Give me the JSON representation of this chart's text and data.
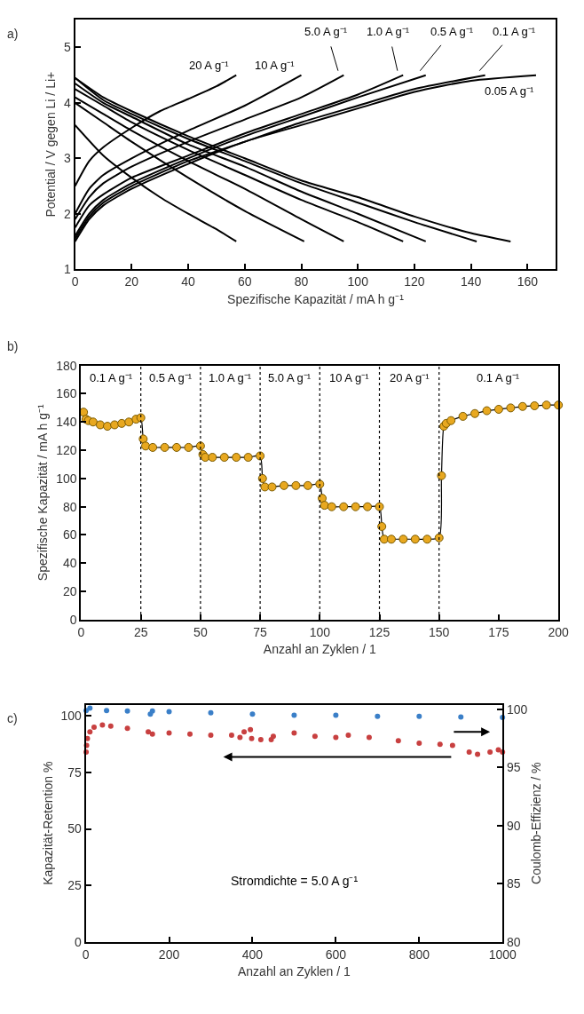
{
  "chart_data": [
    {
      "type": "line",
      "annotations": [
        "a)"
      ],
      "xlabel": "Spezifische Kapazität / mA h g⁻¹",
      "ylabel": "Potential / V gegen Li / Li+",
      "xlim": [
        0,
        170
      ],
      "ylim": [
        1,
        5.5
      ],
      "xticks": [
        0,
        20,
        40,
        60,
        80,
        100,
        120,
        140,
        160
      ],
      "yticks": [
        1,
        2,
        3,
        4,
        5
      ],
      "legend": false,
      "line_style": "solid",
      "series": [
        {
          "name": "20 A g⁻¹",
          "color": "#000000",
          "x": [
            0,
            5,
            10,
            20,
            30,
            40,
            50,
            57
          ],
          "values": [
            2.5,
            2.95,
            3.2,
            3.55,
            3.85,
            4.07,
            4.3,
            4.5
          ]
        },
        {
          "color": "#000000",
          "x": [
            0,
            10,
            20,
            30,
            40,
            50,
            57
          ],
          "values": [
            3.6,
            3.05,
            2.65,
            2.3,
            2.0,
            1.72,
            1.5
          ]
        },
        {
          "name": "10 A g⁻¹",
          "color": "#000000",
          "x": [
            0,
            5,
            10,
            20,
            40,
            60,
            80
          ],
          "values": [
            2.0,
            2.45,
            2.7,
            3.0,
            3.5,
            3.95,
            4.5
          ]
        },
        {
          "color": "#000000",
          "x": [
            0,
            10,
            20,
            40,
            60,
            81
          ],
          "values": [
            4.0,
            3.65,
            3.3,
            2.65,
            2.05,
            1.5
          ]
        },
        {
          "name": "5.0 A g⁻¹",
          "color": "#000000",
          "x": [
            0,
            5,
            10,
            20,
            40,
            60,
            80,
            95
          ],
          "values": [
            1.9,
            2.3,
            2.55,
            2.85,
            3.3,
            3.7,
            4.1,
            4.5
          ]
        },
        {
          "color": "#000000",
          "x": [
            0,
            10,
            20,
            40,
            60,
            80,
            95
          ],
          "values": [
            4.1,
            3.8,
            3.5,
            2.95,
            2.45,
            1.9,
            1.5
          ]
        },
        {
          "name": "1.0 A g⁻¹",
          "color": "#000000",
          "x": [
            0,
            5,
            10,
            20,
            40,
            60,
            80,
            100,
            116
          ],
          "values": [
            1.75,
            2.15,
            2.35,
            2.65,
            3.05,
            3.45,
            3.8,
            4.15,
            4.5
          ]
        },
        {
          "color": "#000000",
          "x": [
            0,
            10,
            20,
            40,
            60,
            80,
            100,
            116
          ],
          "values": [
            4.25,
            3.95,
            3.65,
            3.15,
            2.7,
            2.25,
            1.85,
            1.5
          ]
        },
        {
          "name": "0.5 A g⁻¹",
          "color": "#000000",
          "x": [
            0,
            5,
            10,
            20,
            40,
            60,
            80,
            100,
            124
          ],
          "values": [
            1.6,
            2.0,
            2.25,
            2.55,
            3.0,
            3.4,
            3.75,
            4.1,
            4.5
          ]
        },
        {
          "color": "#000000",
          "x": [
            0,
            10,
            20,
            40,
            60,
            80,
            100,
            124
          ],
          "values": [
            4.35,
            4.0,
            3.75,
            3.25,
            2.85,
            2.4,
            2.0,
            1.5
          ]
        },
        {
          "name": "0.1 A g⁻¹",
          "color": "#000000",
          "x": [
            0,
            5,
            10,
            20,
            40,
            60,
            80,
            100,
            120,
            145
          ],
          "values": [
            1.55,
            1.95,
            2.2,
            2.5,
            2.95,
            3.3,
            3.65,
            3.95,
            4.25,
            4.5
          ]
        },
        {
          "color": "#000000",
          "x": [
            0,
            10,
            20,
            40,
            60,
            80,
            100,
            120,
            142
          ],
          "values": [
            4.45,
            4.05,
            3.8,
            3.35,
            2.95,
            2.55,
            2.2,
            1.85,
            1.5
          ]
        },
        {
          "name": "0.05 A g⁻¹",
          "color": "#000000",
          "x": [
            0,
            5,
            10,
            20,
            40,
            60,
            80,
            100,
            120,
            140,
            163
          ],
          "values": [
            1.5,
            1.9,
            2.15,
            2.45,
            2.9,
            3.3,
            3.6,
            3.9,
            4.2,
            4.4,
            4.5
          ]
        },
        {
          "color": "#000000",
          "x": [
            0,
            10,
            20,
            40,
            60,
            80,
            100,
            120,
            140,
            154
          ],
          "values": [
            4.45,
            4.1,
            3.85,
            3.4,
            3.0,
            2.6,
            2.3,
            1.95,
            1.65,
            1.5
          ]
        }
      ]
    },
    {
      "type": "line",
      "annotations": [
        "b)",
        "0.1 A g⁻¹",
        "0.5 A g⁻¹",
        "1.0 A g⁻¹",
        "5.0 A g⁻¹",
        "10 A g⁻¹",
        "20 A g⁻¹",
        "0.1 A g⁻¹"
      ],
      "xlabel": "Anzahl an Zyklen / 1",
      "ylabel": "Spezifische Kapazität / mA h g⁻¹",
      "xlim": [
        0,
        200
      ],
      "ylim": [
        0,
        180
      ],
      "xticks": [
        0,
        25,
        50,
        75,
        100,
        125,
        150,
        175,
        200
      ],
      "yticks": [
        0,
        20,
        40,
        60,
        80,
        100,
        120,
        140,
        160,
        180
      ],
      "legend": false,
      "marker": "circle",
      "line_style": "solid",
      "ref_lines": [
        {
          "axis": "x",
          "value": 25,
          "line_style": "dotted",
          "color": "#000000"
        },
        {
          "axis": "x",
          "value": 50,
          "line_style": "dotted",
          "color": "#000000"
        },
        {
          "axis": "x",
          "value": 75,
          "line_style": "dotted",
          "color": "#000000"
        },
        {
          "axis": "x",
          "value": 100,
          "line_style": "dotted",
          "color": "#000000"
        },
        {
          "axis": "x",
          "value": 125,
          "line_style": "dotted",
          "color": "#000000"
        },
        {
          "axis": "x",
          "value": 150,
          "line_style": "dotted",
          "color": "#000000"
        }
      ],
      "series": [
        {
          "color": "#e8a820",
          "x": [
            1,
            2,
            3,
            5,
            8,
            11,
            14,
            17,
            20,
            23,
            25,
            26,
            27,
            30,
            35,
            40,
            45,
            50,
            51,
            52,
            55,
            60,
            65,
            70,
            75,
            76,
            77,
            80,
            85,
            90,
            95,
            100,
            101,
            102,
            105,
            110,
            115,
            120,
            125,
            126,
            127,
            130,
            135,
            140,
            145,
            150,
            151,
            152,
            153,
            155,
            160,
            165,
            170,
            175,
            180,
            185,
            190,
            195,
            200
          ],
          "values": [
            147,
            142,
            141,
            140,
            138,
            137,
            138,
            139,
            140,
            142,
            143,
            128,
            123,
            122,
            122,
            122,
            122,
            123,
            117,
            115,
            115,
            115,
            115,
            115,
            116,
            100,
            94,
            94,
            95,
            95,
            95,
            96,
            86,
            81,
            80,
            80,
            80,
            80,
            80,
            66,
            57,
            57,
            57,
            57,
            57,
            58,
            102,
            137,
            139,
            141,
            144,
            146,
            148,
            149,
            150,
            151,
            151.5,
            152,
            152
          ]
        }
      ]
    },
    {
      "type": "scatter",
      "annotations": [
        "c)",
        "Stromdichte = 5.0 A g⁻¹"
      ],
      "xlabel": "Anzahl an Zyklen / 1",
      "ylabel": "Kapazität-Retention %",
      "y2label": "Coulomb-Effizienz / %",
      "xlim": [
        0,
        1000
      ],
      "ylim": [
        0,
        105
      ],
      "y2lim": [
        80,
        100.4
      ],
      "xticks": [
        0,
        200,
        400,
        600,
        800,
        1000
      ],
      "yticks": [
        0,
        25,
        50,
        75,
        100
      ],
      "y2ticks": [
        80,
        85,
        90,
        95,
        100
      ],
      "legend": false,
      "marker": "circle",
      "series": [
        {
          "color": "#c84040",
          "axis": "y",
          "x": [
            1,
            2,
            4,
            10,
            20,
            40,
            60,
            100,
            150,
            160,
            200,
            250,
            300,
            350,
            370,
            380,
            395,
            398,
            420,
            445,
            450,
            500,
            550,
            600,
            630,
            680,
            750,
            800,
            850,
            880,
            920,
            940,
            970,
            990,
            1000
          ],
          "values": [
            84,
            87,
            90,
            93,
            95,
            96,
            95.5,
            94.5,
            93,
            92,
            92.5,
            92,
            91.5,
            91.5,
            90.5,
            93,
            94,
            90,
            89.5,
            89.5,
            91,
            92.5,
            91,
            90.5,
            91.5,
            90.5,
            89,
            88,
            87.5,
            87,
            84,
            83,
            84,
            85,
            84
          ]
        },
        {
          "color": "#3a7fc8",
          "axis": "y2",
          "x": [
            1,
            10,
            50,
            100,
            155,
            160,
            200,
            300,
            400,
            500,
            600,
            700,
            800,
            900,
            1000
          ],
          "values": [
            99.9,
            100.1,
            99.9,
            99.85,
            99.6,
            99.85,
            99.8,
            99.7,
            99.6,
            99.5,
            99.5,
            99.4,
            99.4,
            99.35,
            99.3
          ]
        }
      ]
    }
  ]
}
